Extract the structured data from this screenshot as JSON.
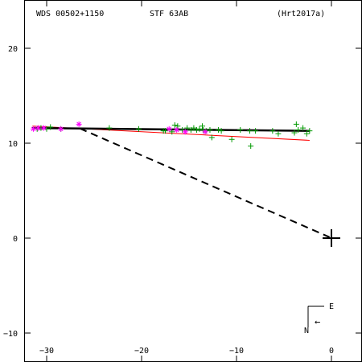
{
  "header": {
    "star_id": "WDS 00502+1150",
    "discoverer": "STF  63AB",
    "orbit_ref": "(Hrt2017a)"
  },
  "compass": {
    "east_label": "E",
    "north_label": "N",
    "arrow_glyph": "←"
  },
  "colors": {
    "orbit": "#000000",
    "alt_orbit": "#ff0000",
    "visual_obs": "#009900",
    "speckle_obs": "#ff00ff",
    "primary_marker": "#000000"
  },
  "chart_data": {
    "type": "scatter",
    "title": "",
    "xlabel": "",
    "ylabel": "",
    "xlim": [
      -32.5,
      3
    ],
    "ylim": [
      -12.8,
      23.8
    ],
    "x_ticks": [
      -30,
      -20,
      -10,
      0
    ],
    "y_ticks": [
      -10,
      0,
      10,
      20
    ],
    "x_tick_labels": [
      "−30",
      "−20",
      "−10",
      "0"
    ],
    "y_tick_labels": [
      "−10",
      "0",
      "10",
      "20"
    ],
    "grid": false,
    "legend": "none",
    "primary": {
      "x": 0,
      "y": 0
    },
    "orbit_line": {
      "x": [
        -31.5,
        -2.3
      ],
      "y": [
        11.6,
        11.3
      ]
    },
    "alt_orbit_line": {
      "x": [
        -31.5,
        -2.3
      ],
      "y": [
        11.8,
        10.3
      ]
    },
    "node_line": {
      "x": [
        -26.5,
        -0.2
      ],
      "y": [
        11.55,
        0.1
      ]
    },
    "series": [
      {
        "marker": "plus",
        "x": [
          -31.0,
          -30.6,
          -30.0,
          -29.6,
          -28.5,
          -23.4,
          -20.3,
          -17.7,
          -17.5,
          -16.8,
          -16.5,
          -16.2,
          -15.7,
          -15.2,
          -14.8,
          -14.5,
          -14.2,
          -13.9,
          -13.6,
          -13.5,
          -13.2,
          -12.8,
          -12.6,
          -11.9,
          -11.6,
          -10.5,
          -9.6,
          -8.6,
          -8.5,
          -8.0,
          -6.2,
          -5.6,
          -3.9,
          -3.7,
          -3.5,
          -3.0,
          -2.6,
          -2.3
        ],
        "y": [
          11.5,
          11.6,
          11.5,
          11.7,
          11.5,
          11.6,
          11.5,
          11.3,
          11.3,
          11.2,
          11.9,
          11.8,
          11.4,
          11.6,
          11.4,
          11.6,
          11.4,
          11.5,
          11.8,
          11.4,
          11.3,
          11.4,
          10.6,
          11.4,
          11.3,
          10.4,
          11.4,
          11.3,
          9.7,
          11.3,
          11.3,
          11.0,
          11.1,
          12.0,
          11.4,
          11.6,
          11.0,
          11.3
        ]
      },
      {
        "marker": "asterisk",
        "x": [
          -31.4,
          -30.9,
          -30.3,
          -28.5,
          -26.6,
          -17.1,
          -16.3,
          -15.4,
          -13.3
        ],
        "y": [
          11.5,
          11.6,
          11.6,
          11.5,
          12.0,
          11.5,
          11.4,
          11.2,
          11.2
        ]
      }
    ]
  }
}
